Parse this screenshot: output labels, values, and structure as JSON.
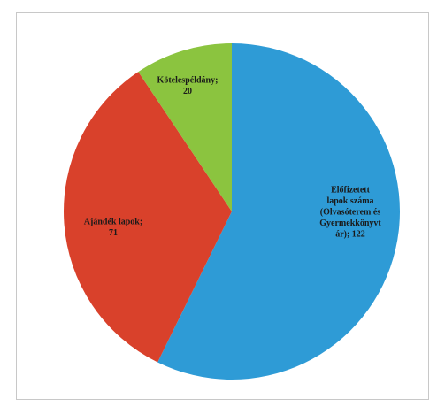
{
  "chart_data": {
    "type": "pie",
    "title": "",
    "slices": [
      {
        "name": "Előfizetett lapok száma (Olvasóterem és Gyermekkönyvtár)",
        "value": 122,
        "color": "#2e9bd6",
        "label_lines": [
          "Előfizetett",
          "lapok száma",
          "(Olvasóterem és",
          "Gyermekkönyvt",
          "ár); 122"
        ]
      },
      {
        "name": "Ajándék lapok",
        "value": 71,
        "color": "#d9412b",
        "label_lines": [
          "Ajándék lapok;",
          "71"
        ]
      },
      {
        "name": "Kötelespéldány",
        "value": 20,
        "color": "#8bc43f",
        "label_lines": [
          "Kötelespéldány;",
          "20"
        ]
      }
    ],
    "start_angle_deg": 0,
    "direction": "clockwise"
  }
}
